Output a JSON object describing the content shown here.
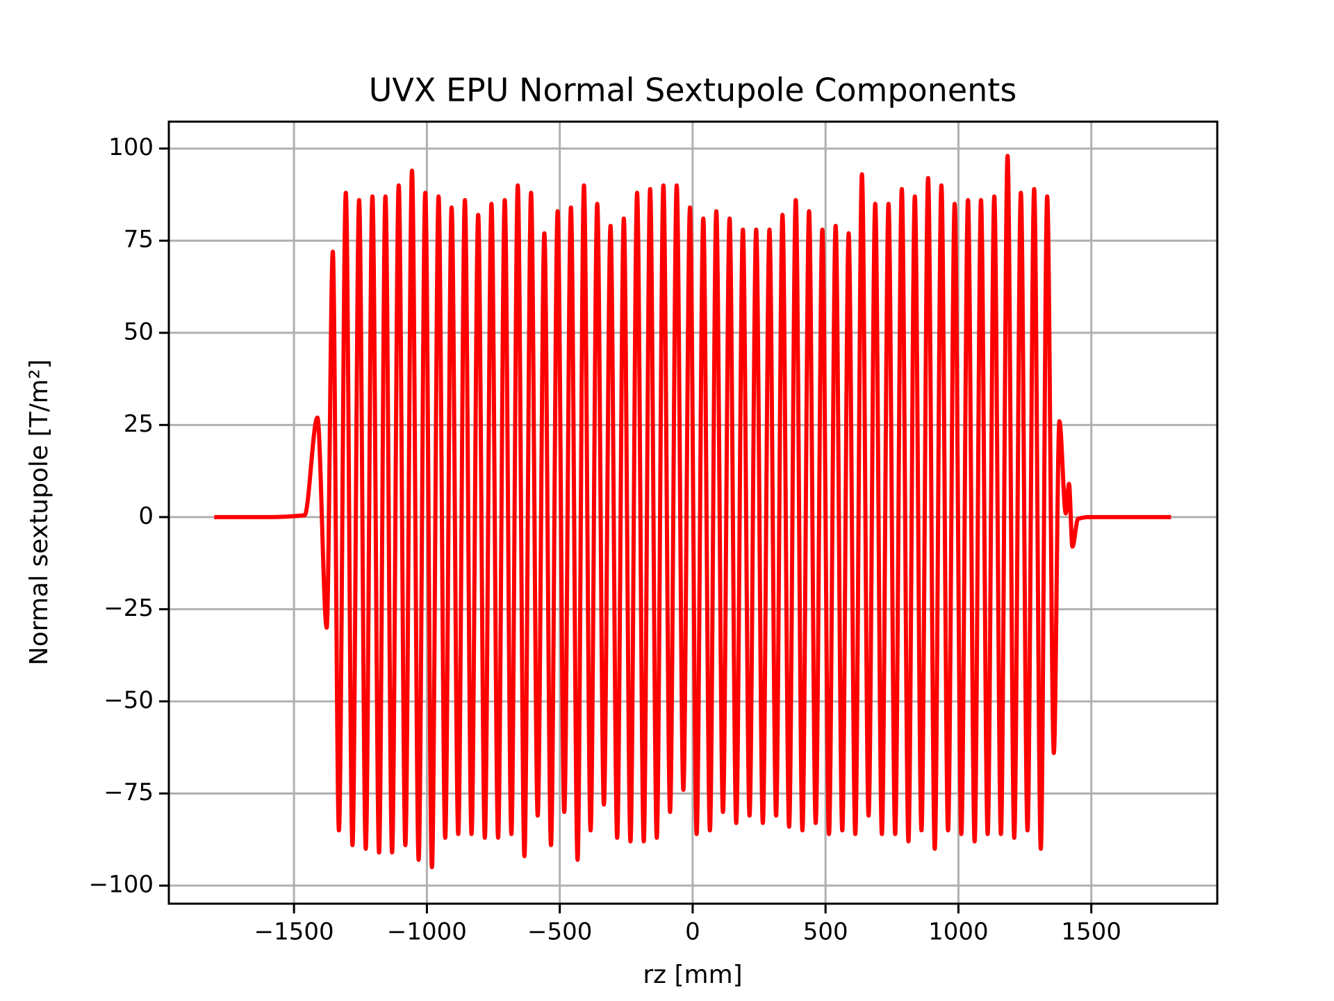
{
  "chart_data": {
    "type": "line",
    "title": "UVX EPU Normal Sextupole Components",
    "x_label": "rz [mm]",
    "y_label": "Normal sextupole [T/m²]",
    "grid": true,
    "xlim": [
      -1971,
      1974
    ],
    "ylim": [
      -104.9,
      107.3
    ],
    "xticks": [
      {
        "value": -1500,
        "label": "−1500"
      },
      {
        "value": -1000,
        "label": "−1000"
      },
      {
        "value": -500,
        "label": "−500"
      },
      0,
      500,
      1000,
      1500
    ],
    "yticks": [
      {
        "value": -100,
        "label": "−100"
      },
      {
        "value": -75,
        "label": "−75"
      },
      {
        "value": -50,
        "label": "−50"
      },
      {
        "value": -25,
        "label": "−25"
      },
      0,
      25,
      50,
      75,
      100
    ],
    "x": [
      -1800,
      -1600,
      -1460,
      -1412,
      -1377,
      -1354,
      -1331,
      -1305,
      -1280,
      -1255,
      -1230,
      -1205,
      -1180,
      -1156,
      -1131,
      -1106,
      -1081,
      -1056,
      -1031,
      -1006,
      -981,
      -956,
      -931,
      -907,
      -882,
      -857,
      -832,
      -807,
      -782,
      -757,
      -732,
      -707,
      -682,
      -658,
      -633,
      -608,
      -583,
      -558,
      -533,
      -508,
      -483,
      -458,
      -433,
      -409,
      -384,
      -359,
      -334,
      -309,
      -284,
      -259,
      -234,
      -209,
      -184,
      -160,
      -135,
      -110,
      -85,
      -60,
      -35,
      -10,
      15,
      40,
      65,
      89,
      114,
      139,
      164,
      189,
      214,
      239,
      264,
      289,
      314,
      338,
      363,
      388,
      413,
      438,
      463,
      488,
      513,
      538,
      563,
      587,
      612,
      637,
      662,
      687,
      712,
      737,
      762,
      787,
      812,
      836,
      861,
      886,
      911,
      936,
      961,
      986,
      1011,
      1036,
      1061,
      1085,
      1110,
      1135,
      1160,
      1185,
      1210,
      1235,
      1260,
      1285,
      1310,
      1334,
      1359,
      1380,
      1404,
      1416,
      1429,
      1450,
      1490,
      1600,
      1800
    ],
    "series": [
      {
        "color": "#ff0000",
        "values": [
          0,
          0,
          0.5,
          27,
          -30,
          72,
          -85,
          88,
          -89,
          86,
          -90,
          87,
          -91,
          87,
          -91,
          90,
          -89,
          94,
          -93,
          88,
          -95,
          87,
          -87,
          84,
          -86,
          86,
          -86,
          82,
          -87,
          85,
          -87,
          86,
          -86,
          90,
          -92,
          88,
          -81,
          77,
          -89,
          83,
          -80,
          84,
          -93,
          90,
          -85,
          85,
          -78,
          79,
          -87,
          81,
          -88,
          88,
          -88,
          89,
          -87,
          90,
          -80,
          90,
          -74,
          84,
          -86,
          81,
          -85,
          83,
          -80,
          81,
          -83,
          78,
          -81,
          78,
          -83,
          78,
          -81,
          82,
          -84,
          86,
          -85,
          83,
          -83,
          78,
          -86,
          79,
          -85,
          77,
          -86,
          93,
          -81,
          85,
          -86,
          85,
          -86,
          89,
          -88,
          87,
          -85,
          92,
          -90,
          90,
          -85,
          85,
          -86,
          86,
          -88,
          86,
          -86,
          87,
          -86,
          98,
          -87,
          88,
          -85,
          89,
          -90,
          87,
          -64,
          26,
          1,
          9,
          -8,
          -0.5,
          0,
          0,
          0
        ]
      }
    ]
  }
}
